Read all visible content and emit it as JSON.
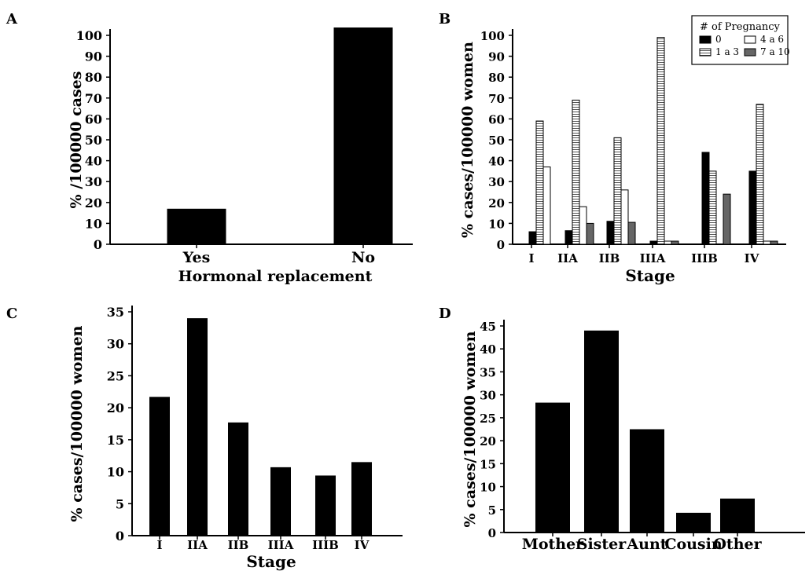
{
  "chart_data": [
    {
      "panel": "A",
      "type": "bar",
      "categories": [
        "Yes",
        "No"
      ],
      "values": [
        17,
        105
      ],
      "xlabel": "Hormonal replacement",
      "ylabel": "% /100000 cases",
      "ylim": [
        0,
        100
      ],
      "yticks": [
        0,
        10,
        20,
        30,
        40,
        50,
        60,
        70,
        80,
        90,
        100
      ],
      "bar_color": "#000000"
    },
    {
      "panel": "B",
      "type": "bar",
      "categories": [
        "I",
        "IIA",
        "IIB",
        "IIIA",
        "IIIB",
        "IV"
      ],
      "series": [
        {
          "name": "0",
          "values": [
            6,
            6.5,
            11,
            1.5,
            44,
            35
          ],
          "fill": "#000000",
          "pattern": "solid"
        },
        {
          "name": "1 a 3",
          "values": [
            59,
            69,
            51,
            99,
            35,
            67
          ],
          "fill": "#ffffff",
          "pattern": "hstripe"
        },
        {
          "name": "4 a 6",
          "values": [
            37,
            18,
            26,
            1.5,
            0,
            1.5
          ],
          "fill": "#ffffff",
          "pattern": "open"
        },
        {
          "name": "7 a 10",
          "values": [
            0,
            10,
            10.5,
            1.5,
            24,
            1.5
          ],
          "fill": "#666666",
          "pattern": "solid"
        }
      ],
      "legend_title": "# of Pregnancy",
      "legend_position": "top-right",
      "xlabel": "Stage",
      "ylabel": "% cases/100000 women",
      "ylim": [
        0,
        100
      ],
      "yticks": [
        0,
        10,
        20,
        30,
        40,
        50,
        60,
        70,
        80,
        90,
        100
      ]
    },
    {
      "panel": "C",
      "type": "bar",
      "categories": [
        "I",
        "IIA",
        "IIB",
        "IIIA",
        "IIIB",
        "IV"
      ],
      "values": [
        21.7,
        34,
        17.7,
        10.7,
        9.4,
        11.5
      ],
      "xlabel": "Stage",
      "ylabel": "% cases/100000 women",
      "ylim": [
        0,
        35
      ],
      "yticks": [
        0,
        5,
        10,
        15,
        20,
        25,
        30,
        35
      ],
      "bar_color": "#000000"
    },
    {
      "panel": "D",
      "type": "bar",
      "categories": [
        "Mother",
        "Sister",
        "Aunt",
        "Cousin",
        "Other"
      ],
      "values": [
        28.3,
        44,
        22.5,
        4.3,
        7.4
      ],
      "xlabel": "",
      "ylabel": "% cases/100000 women",
      "ylim": [
        0,
        45
      ],
      "yticks": [
        0,
        5,
        10,
        15,
        20,
        25,
        30,
        35,
        40,
        45
      ],
      "bar_color": "#000000"
    }
  ]
}
